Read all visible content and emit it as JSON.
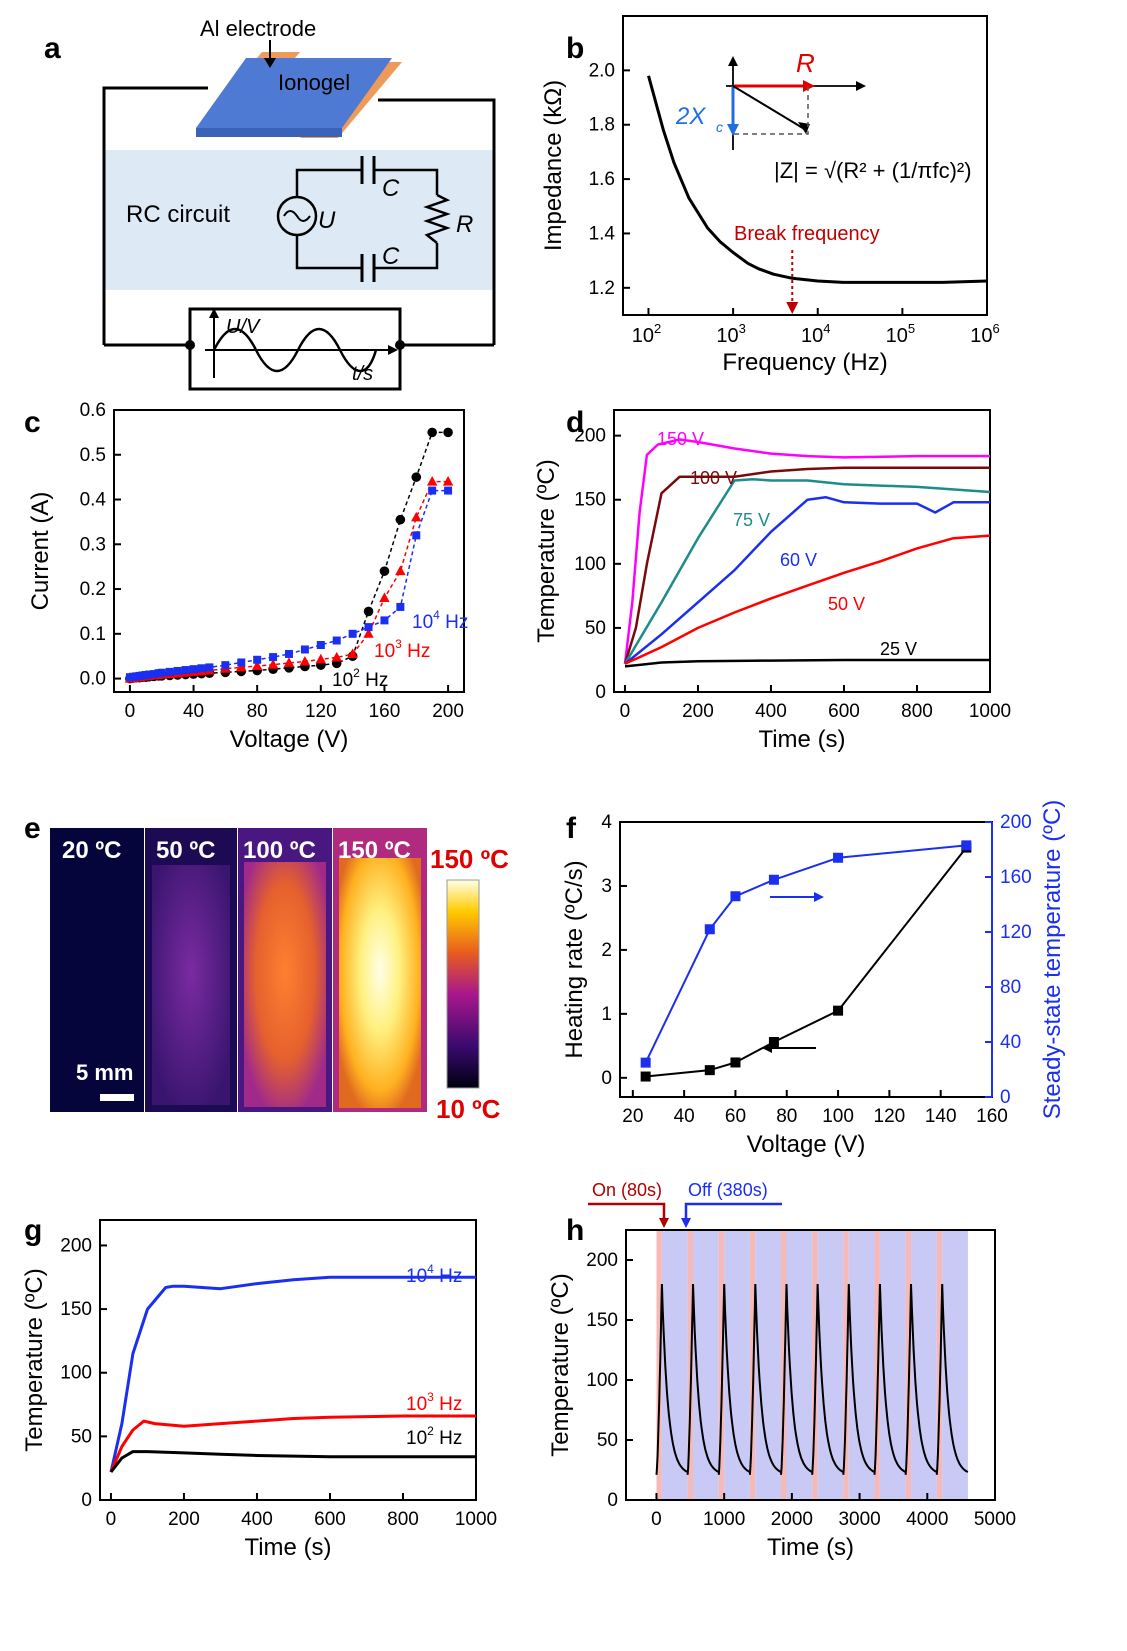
{
  "panels": {
    "a": {
      "label": "a",
      "electrode_label": "Al electrode",
      "ionogel_label": "Ionogel",
      "rc_label": "RC circuit",
      "u_label": "U",
      "c_label": "C",
      "r_label": "R",
      "wave_y_label": "U/V",
      "wave_x_label": "t/s",
      "colors": {
        "electrode": "#ee9a5a",
        "ionogel": "#4f7ad3",
        "rc_band": "#dde9f5"
      }
    },
    "b": {
      "label": "b",
      "inset_R": "R",
      "inset_2Xc": "2X",
      "inset_c_sub": "c",
      "formula": "|Z| = √(R² + (1/πfc)²)",
      "annotation": "Break frequency"
    },
    "c": {
      "label": "c"
    },
    "d": {
      "label": "d"
    },
    "e": {
      "label": "e",
      "tiles": [
        "20 ºC",
        "50 ºC",
        "100 ºC",
        "150 ºC"
      ],
      "scale_bar": "5 mm",
      "cbar_max": "150 ºC",
      "cbar_min": "10 ºC"
    },
    "f": {
      "label": "f"
    },
    "g": {
      "label": "g"
    },
    "h": {
      "label": "h",
      "on_label": "On (80s)",
      "off_label": "Off (380s)"
    }
  },
  "chart_data": [
    {
      "id": "b",
      "type": "line",
      "xlabel": "Frequency (Hz)",
      "ylabel": "Impedance (kΩ)",
      "xscale": "log",
      "xlim": [
        50,
        1000000
      ],
      "ylim": [
        1.1,
        2.2
      ],
      "xticks": [
        "10^2",
        "10^3",
        "10^4",
        "10^5",
        "10^6"
      ],
      "yticks": [
        1.2,
        1.4,
        1.6,
        1.8,
        2.0
      ],
      "series": [
        {
          "color": "#000000",
          "x": [
            100,
            150,
            200,
            300,
            500,
            700,
            1000,
            1500,
            2000,
            3000,
            5000,
            10000,
            20000,
            50000,
            100000,
            300000,
            1000000
          ],
          "y": [
            1.98,
            1.78,
            1.66,
            1.53,
            1.42,
            1.37,
            1.33,
            1.29,
            1.27,
            1.25,
            1.235,
            1.225,
            1.22,
            1.22,
            1.22,
            1.22,
            1.225
          ]
        }
      ],
      "break_frequency": 5000
    },
    {
      "id": "c",
      "type": "line",
      "xlabel": "Voltage (V)",
      "ylabel": "Current (A)",
      "xlim": [
        -10,
        210
      ],
      "ylim": [
        -0.03,
        0.6
      ],
      "xticks": [
        0,
        40,
        80,
        120,
        160,
        200
      ],
      "yticks": [
        0.0,
        0.1,
        0.2,
        0.3,
        0.4,
        0.5,
        0.6
      ],
      "series": [
        {
          "name": "10^2 Hz",
          "color": "#000000",
          "marker": "circle",
          "x": [
            0,
            2,
            4,
            6,
            8,
            10,
            12,
            15,
            18,
            20,
            25,
            30,
            35,
            40,
            45,
            50,
            60,
            70,
            80,
            90,
            100,
            110,
            120,
            130,
            140,
            150,
            160,
            170,
            180,
            190,
            200
          ],
          "y": [
            0.0,
            0.001,
            0.002,
            0.002,
            0.003,
            0.003,
            0.004,
            0.005,
            0.006,
            0.006,
            0.007,
            0.008,
            0.009,
            0.01,
            0.011,
            0.012,
            0.014,
            0.016,
            0.018,
            0.021,
            0.024,
            0.027,
            0.03,
            0.034,
            0.05,
            0.15,
            0.24,
            0.355,
            0.45,
            0.55,
            0.55
          ]
        },
        {
          "name": "10^3 Hz",
          "color": "#ff0000",
          "marker": "triangle",
          "x": [
            0,
            2,
            4,
            6,
            8,
            10,
            12,
            15,
            18,
            20,
            25,
            30,
            35,
            40,
            45,
            50,
            60,
            70,
            80,
            90,
            100,
            110,
            120,
            130,
            140,
            150,
            160,
            170,
            180,
            190,
            200
          ],
          "y": [
            0.0,
            0.001,
            0.002,
            0.003,
            0.004,
            0.005,
            0.006,
            0.007,
            0.008,
            0.009,
            0.01,
            0.011,
            0.013,
            0.015,
            0.016,
            0.018,
            0.022,
            0.025,
            0.028,
            0.031,
            0.035,
            0.038,
            0.043,
            0.047,
            0.055,
            0.1,
            0.18,
            0.24,
            0.36,
            0.44,
            0.44
          ]
        },
        {
          "name": "10^4 Hz",
          "color": "#1a2ff0",
          "marker": "square",
          "x": [
            0,
            2,
            4,
            6,
            8,
            10,
            12,
            15,
            18,
            20,
            25,
            30,
            35,
            40,
            45,
            50,
            60,
            70,
            80,
            90,
            100,
            110,
            120,
            130,
            140,
            150,
            160,
            170,
            180,
            190,
            200
          ],
          "y": [
            0.003,
            0.004,
            0.005,
            0.006,
            0.007,
            0.008,
            0.009,
            0.01,
            0.012,
            0.013,
            0.015,
            0.017,
            0.019,
            0.021,
            0.023,
            0.025,
            0.03,
            0.036,
            0.042,
            0.048,
            0.055,
            0.065,
            0.075,
            0.085,
            0.1,
            0.115,
            0.13,
            0.16,
            0.32,
            0.42,
            0.42
          ]
        }
      ]
    },
    {
      "id": "d",
      "type": "line",
      "xlabel": "Time (s)",
      "ylabel": "Temperature (ºC)",
      "xlim": [
        -30,
        1000
      ],
      "ylim": [
        0,
        220
      ],
      "xticks": [
        0,
        200,
        400,
        600,
        800,
        1000
      ],
      "yticks": [
        0,
        50,
        100,
        150,
        200
      ],
      "series": [
        {
          "name": "150 V",
          "color": "#ff00ff",
          "x": [
            0,
            20,
            40,
            60,
            90,
            150,
            200,
            300,
            400,
            500,
            600,
            800,
            1000
          ],
          "y": [
            22,
            70,
            140,
            185,
            193,
            197,
            195,
            190,
            186,
            184,
            183,
            184,
            184
          ]
        },
        {
          "name": "100 V",
          "color": "#7a0a0a",
          "x": [
            0,
            30,
            60,
            100,
            150,
            200,
            300,
            400,
            500,
            600,
            800,
            1000
          ],
          "y": [
            22,
            50,
            100,
            155,
            168,
            168,
            168,
            172,
            174,
            175,
            175,
            175
          ]
        },
        {
          "name": "75 V",
          "color": "#1f8b8b",
          "x": [
            0,
            100,
            200,
            300,
            350,
            400,
            500,
            600,
            800,
            1000
          ],
          "y": [
            22,
            70,
            120,
            165,
            166,
            165,
            165,
            162,
            160,
            156
          ]
        },
        {
          "name": "60 V",
          "color": "#1a2ff0",
          "x": [
            0,
            100,
            200,
            300,
            400,
            500,
            550,
            600,
            700,
            800,
            850,
            900,
            1000
          ],
          "y": [
            22,
            45,
            70,
            95,
            125,
            150,
            152,
            148,
            147,
            147,
            140,
            148,
            148
          ]
        },
        {
          "name": "50 V",
          "color": "#ff0000",
          "x": [
            0,
            100,
            200,
            300,
            400,
            500,
            600,
            700,
            800,
            900,
            1000
          ],
          "y": [
            22,
            35,
            50,
            62,
            73,
            83,
            93,
            102,
            112,
            120,
            122
          ]
        },
        {
          "name": "25 V",
          "color": "#000000",
          "x": [
            0,
            100,
            200,
            400,
            600,
            800,
            1000
          ],
          "y": [
            20,
            23,
            24,
            24.5,
            25,
            25,
            25
          ]
        }
      ]
    },
    {
      "id": "f",
      "type": "scatter",
      "xlabel": "Voltage (V)",
      "ylabel": "Heating rate (ºC/s)",
      "y2label": "Steady-state temperature (ºC)",
      "xlim": [
        15,
        160
      ],
      "ylim": [
        -0.3,
        4
      ],
      "y2lim": [
        0,
        200
      ],
      "xticks": [
        20,
        40,
        60,
        80,
        100,
        120,
        140,
        160
      ],
      "yticks": [
        0,
        1,
        2,
        3,
        4
      ],
      "y2ticks": [
        0,
        40,
        80,
        120,
        160,
        200
      ],
      "series": [
        {
          "name": "Heating rate",
          "color": "#000000",
          "marker": "square",
          "axis": "left",
          "x": [
            25,
            50,
            60,
            75,
            100,
            150
          ],
          "y": [
            0.02,
            0.12,
            0.24,
            0.56,
            1.05,
            3.6
          ]
        },
        {
          "name": "Steady-state temperature",
          "color": "#1a2ff0",
          "marker": "square",
          "axis": "right",
          "x": [
            25,
            50,
            60,
            75,
            100,
            150
          ],
          "y": [
            25,
            122,
            146,
            158,
            174,
            183
          ]
        }
      ]
    },
    {
      "id": "g",
      "type": "line",
      "xlabel": "Time (s)",
      "ylabel": "Temperature (ºC)",
      "xlim": [
        -30,
        1000
      ],
      "ylim": [
        0,
        220
      ],
      "xticks": [
        0,
        200,
        400,
        600,
        800,
        1000
      ],
      "yticks": [
        0,
        50,
        100,
        150,
        200
      ],
      "series": [
        {
          "name": "10^4 Hz",
          "color": "#1a2ff0",
          "x": [
            0,
            30,
            60,
            100,
            150,
            170,
            200,
            300,
            400,
            500,
            600,
            800,
            1000
          ],
          "y": [
            22,
            60,
            115,
            150,
            167,
            168,
            168,
            166,
            170,
            173,
            175,
            175,
            175
          ]
        },
        {
          "name": "10^3 Hz",
          "color": "#ff0000",
          "x": [
            0,
            30,
            60,
            90,
            120,
            200,
            300,
            400,
            500,
            600,
            800,
            1000
          ],
          "y": [
            22,
            42,
            55,
            62,
            60,
            58,
            60,
            62,
            64,
            65,
            66,
            66
          ]
        },
        {
          "name": "10^2 Hz",
          "color": "#000000",
          "x": [
            0,
            30,
            60,
            100,
            200,
            300,
            400,
            600,
            800,
            1000
          ],
          "y": [
            22,
            33,
            38,
            38,
            37,
            36,
            35,
            34,
            34,
            34
          ]
        }
      ]
    },
    {
      "id": "h",
      "type": "line",
      "xlabel": "Time (s)",
      "ylabel": "Temperature (ºC)",
      "xlim": [
        -450,
        5000
      ],
      "ylim": [
        0,
        225
      ],
      "xticks": [
        0,
        1000,
        2000,
        3000,
        4000,
        5000
      ],
      "yticks": [
        0,
        50,
        100,
        150,
        200
      ],
      "cycles": 10,
      "on_duration": 80,
      "off_duration": 380,
      "peak": 180,
      "base": 21,
      "colors": {
        "on": "#f6b9b9",
        "off": "#c8c9f5",
        "curve": "#000000"
      }
    }
  ]
}
